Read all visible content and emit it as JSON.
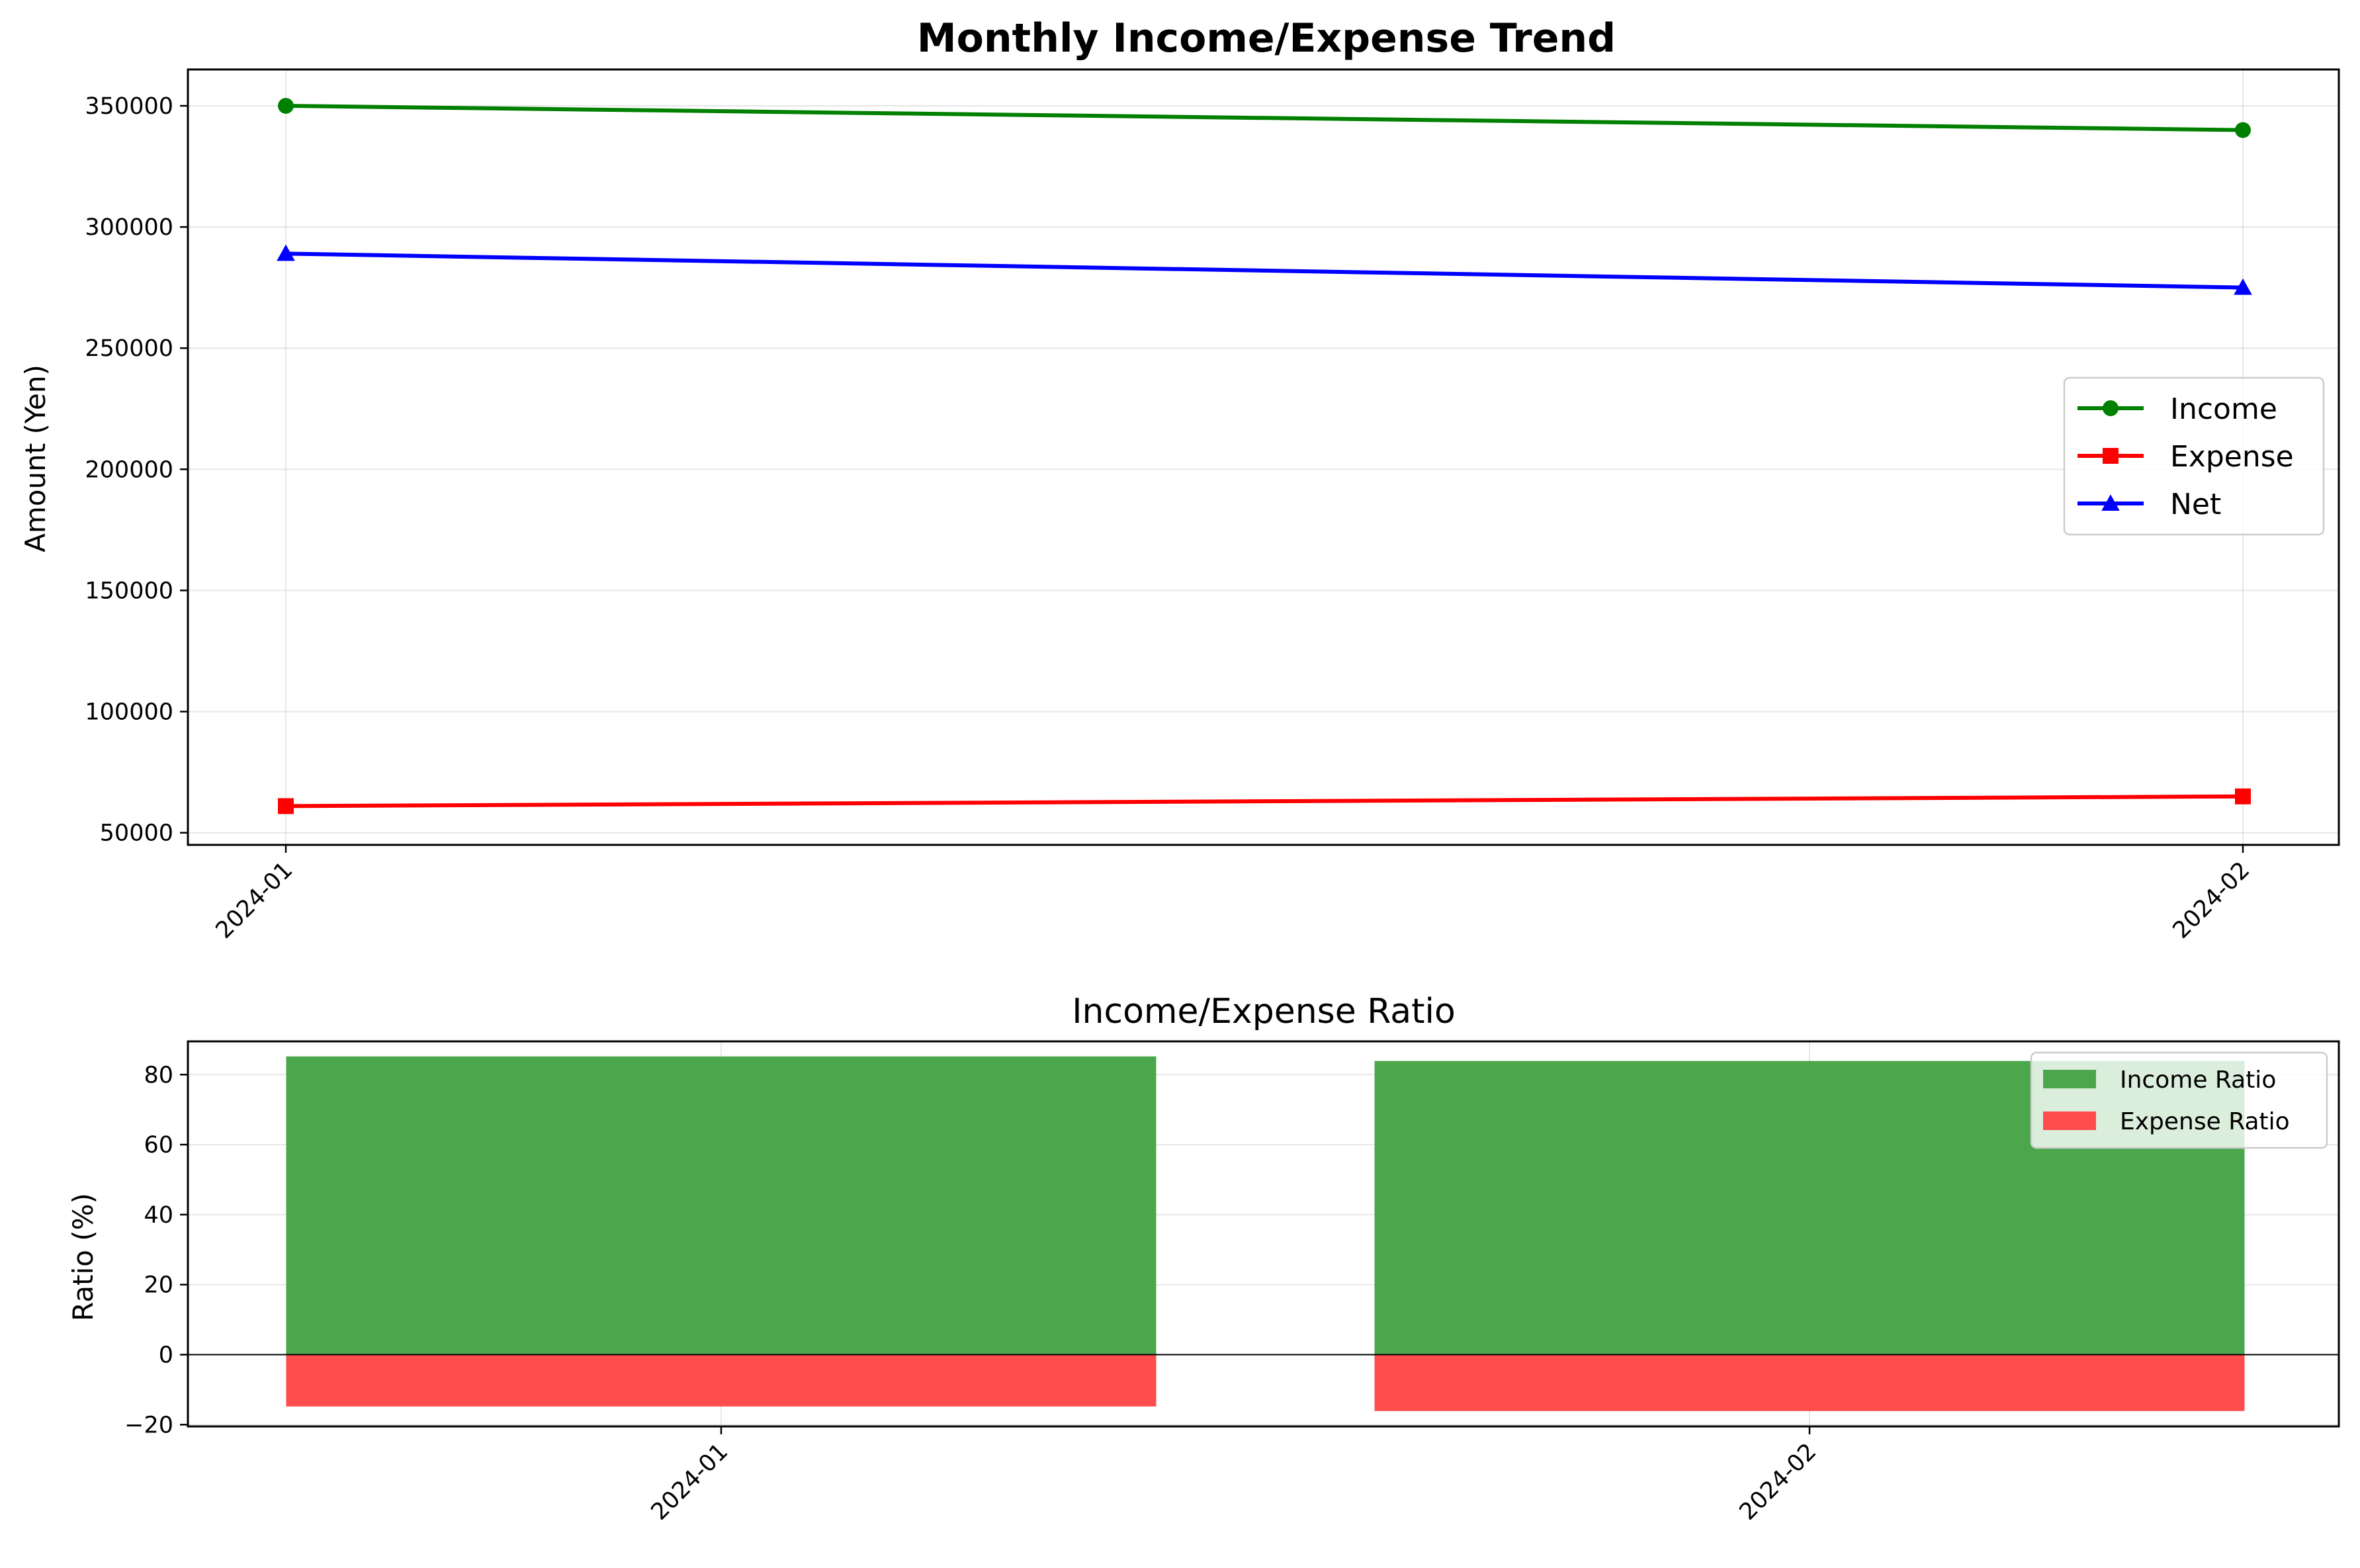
{
  "chart_data": [
    {
      "type": "line",
      "title": "Monthly Income/Expense Trend",
      "xlabel": "",
      "ylabel": "Amount (Yen)",
      "x": [
        "2024-01",
        "2024-02"
      ],
      "ylim": [
        45000,
        365000
      ],
      "yticks": [
        50000,
        100000,
        150000,
        200000,
        250000,
        300000,
        350000
      ],
      "ytick_labels": [
        "50000",
        "100000",
        "150000",
        "200000",
        "250000",
        "300000",
        "350000"
      ],
      "grid": true,
      "legend_position": "center-right",
      "series": [
        {
          "name": "Income",
          "values": [
            350000,
            340000
          ],
          "color": "#008000",
          "marker": "circle"
        },
        {
          "name": "Expense",
          "values": [
            61000,
            65000
          ],
          "color": "#ff0000",
          "marker": "square"
        },
        {
          "name": "Net",
          "values": [
            289000,
            275000
          ],
          "color": "#0000ff",
          "marker": "triangle"
        }
      ]
    },
    {
      "type": "bar",
      "title": "Income/Expense Ratio",
      "xlabel": "",
      "ylabel": "Ratio (%)",
      "categories": [
        "2024-01",
        "2024-02"
      ],
      "ylim": [
        -20.5,
        89.5
      ],
      "yticks": [
        -20,
        0,
        20,
        40,
        60,
        80
      ],
      "ytick_labels": [
        "−20",
        "0",
        "20",
        "40",
        "60",
        "80"
      ],
      "grid": true,
      "legend_position": "top-right",
      "series": [
        {
          "name": "Income Ratio",
          "values": [
            85.2,
            83.9
          ],
          "color": "#4ca64c"
        },
        {
          "name": "Expense Ratio",
          "values": [
            -14.8,
            -16.1
          ],
          "color": "#ff4c4c"
        }
      ]
    }
  ]
}
